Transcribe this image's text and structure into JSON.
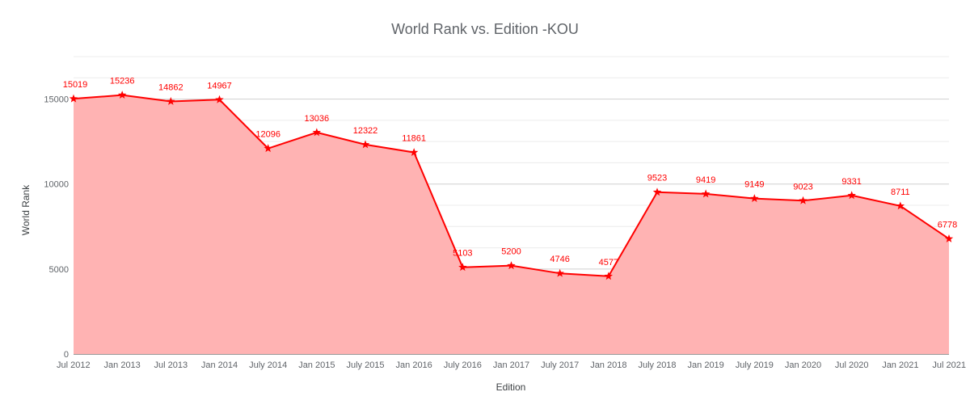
{
  "chart_data": {
    "type": "area",
    "title": "World Rank vs. Edition -KOU",
    "xlabel": "Edition",
    "ylabel": "World Rank",
    "categories": [
      "Jul 2012",
      "Jan 2013",
      "Jul 2013",
      "Jan 2014",
      "July 2014",
      "Jan 2015",
      "July 2015",
      "Jan 2016",
      "July 2016",
      "Jan 2017",
      "July 2017",
      "Jan 2018",
      "July 2018",
      "Jan 2019",
      "July 2019",
      "Jan 2020",
      "Jul 2020",
      "Jan 2021",
      "Jul 2021"
    ],
    "series": [
      {
        "values": [
          15019,
          15236,
          14862,
          14967,
          12096,
          13036,
          12322,
          11861,
          5103,
          5200,
          4746,
          4577,
          9523,
          9419,
          9149,
          9023,
          9331,
          8711,
          6778
        ]
      }
    ],
    "ylim": [
      0,
      17500
    ],
    "yticks": [
      0,
      5000,
      10000,
      15000
    ],
    "grid": true,
    "line_color": "#ff0000",
    "fill_color": "#ffb3b3",
    "marker": "star"
  }
}
